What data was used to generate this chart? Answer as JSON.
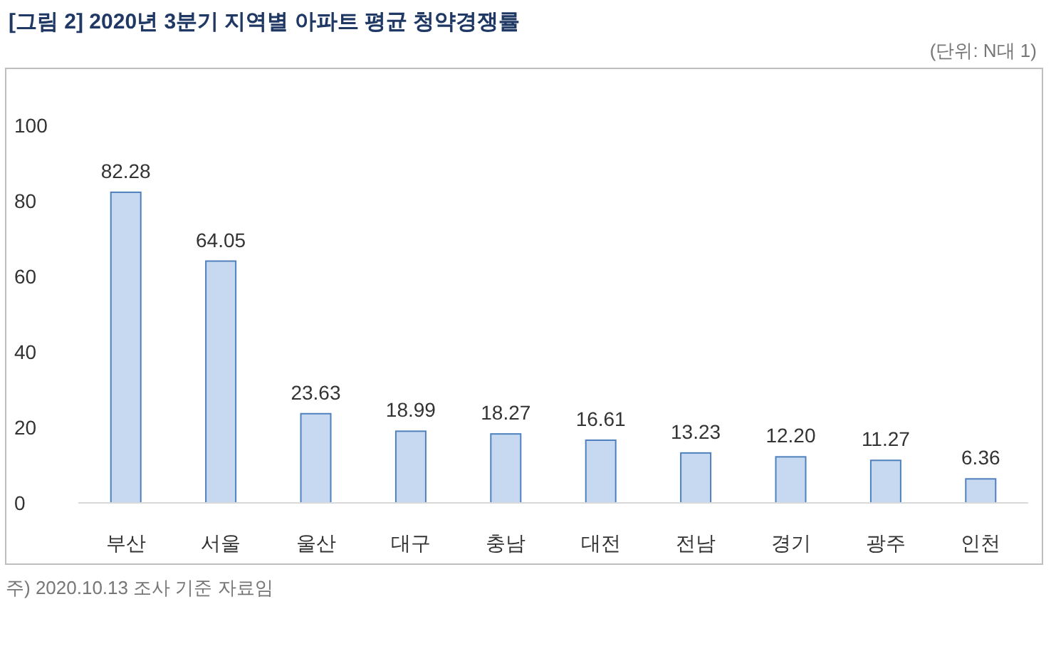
{
  "chart_data": {
    "type": "bar",
    "title": "[그림 2] 2020년 3분기 지역별 아파트 평균 청약경쟁률",
    "subtitle": "(단위: N대 1)",
    "categories": [
      "부산",
      "서울",
      "울산",
      "대구",
      "충남",
      "대전",
      "전남",
      "경기",
      "광주",
      "인천"
    ],
    "values": [
      82.28,
      64.05,
      23.63,
      18.99,
      18.27,
      16.61,
      13.23,
      12.2,
      11.27,
      6.36
    ],
    "value_labels": [
      "82.28",
      "64.05",
      "23.63",
      "18.99",
      "18.27",
      "16.61",
      "13.23",
      "12.20",
      "11.27",
      "6.36"
    ],
    "color": "#c6d9f0",
    "ylim": [
      0,
      100
    ],
    "yticks": [
      0,
      20,
      40,
      60,
      80,
      100
    ],
    "annotations": [
      "주) 2020.10.13 조사 기준 자료임"
    ]
  }
}
